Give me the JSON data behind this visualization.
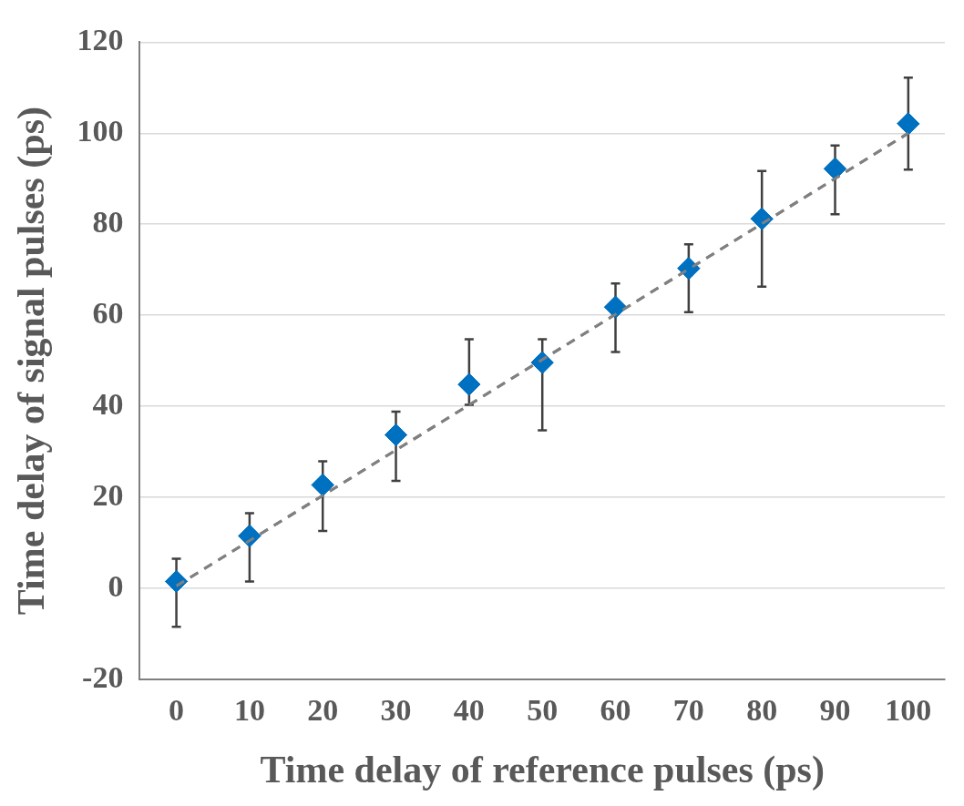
{
  "chart_data": {
    "type": "scatter",
    "xlabel": "Time delay of reference pulses (ps)",
    "ylabel": "Time delay of signal pulses (ps)",
    "x": [
      0,
      10,
      20,
      30,
      40,
      50,
      60,
      70,
      80,
      90,
      100
    ],
    "series": [
      {
        "color": "#0070c0",
        "marker": "diamond",
        "values": [
          1.5,
          11.5,
          22.7,
          33.7,
          44.8,
          49.6,
          61.8,
          70.3,
          81.2,
          92.2,
          102.1
        ],
        "errors": [
          [
            -8.5,
            6.5
          ],
          [
            1.5,
            16.5
          ],
          [
            12.6,
            27.9
          ],
          [
            23.6,
            38.8
          ],
          [
            40.3,
            54.7
          ],
          [
            34.7,
            54.7
          ],
          [
            51.9,
            67
          ],
          [
            60.7,
            75.6
          ],
          [
            66.3,
            91.7
          ],
          [
            82.2,
            97.3
          ],
          [
            92,
            112.2
          ]
        ]
      },
      {
        "type": "line",
        "color": "#808080",
        "line_style": "dashed",
        "marker": "none",
        "x": [
          0,
          100
        ],
        "values": [
          0.5,
          100
        ]
      }
    ],
    "xlim": [
      -5,
      105
    ],
    "xticks": [
      0,
      10,
      20,
      30,
      40,
      50,
      60,
      70,
      80,
      90,
      100
    ],
    "ylim": [
      -20,
      120
    ],
    "yticks": [
      -20,
      0,
      20,
      40,
      60,
      80,
      100,
      120
    ],
    "grid": "y",
    "legend": false
  }
}
